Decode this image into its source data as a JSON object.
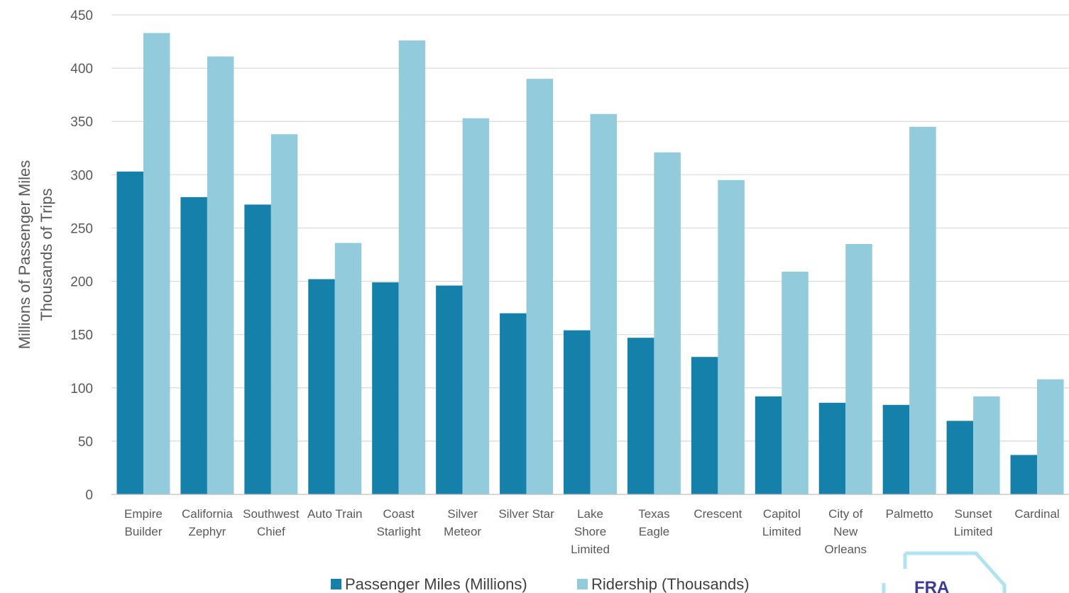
{
  "chart_data": {
    "type": "bar",
    "ylabel": [
      "Millions of Passenger Miles",
      "Thousands of Trips"
    ],
    "ylim": [
      0,
      450
    ],
    "yticks": [
      0,
      50,
      100,
      150,
      200,
      250,
      300,
      350,
      400,
      450
    ],
    "grid": true,
    "legend_position": "bottom",
    "categories": [
      [
        "Empire",
        "Builder"
      ],
      [
        "California",
        "Zephyr"
      ],
      [
        "Southwest",
        "Chief"
      ],
      [
        "Auto Train"
      ],
      [
        "Coast",
        "Starlight"
      ],
      [
        "Silver",
        "Meteor"
      ],
      [
        "Silver Star"
      ],
      [
        "Lake",
        "Shore",
        "Limited"
      ],
      [
        "Texas",
        "Eagle"
      ],
      [
        "Crescent"
      ],
      [
        "Capitol",
        "Limited"
      ],
      [
        "City of",
        "New",
        "Orleans"
      ],
      [
        "Palmetto"
      ],
      [
        "Sunset",
        "Limited"
      ],
      [
        "Cardinal"
      ]
    ],
    "series": [
      {
        "name": "Passenger Miles (Millions)",
        "color": "#1581aa",
        "values": [
          303,
          279,
          272,
          202,
          199,
          196,
          170,
          154,
          147,
          129,
          92,
          86,
          84,
          69,
          37
        ]
      },
      {
        "name": "Ridership (Thousands)",
        "color": "#92cbdc",
        "values": [
          433,
          411,
          338,
          236,
          426,
          353,
          390,
          357,
          321,
          295,
          209,
          235,
          345,
          92,
          108
        ]
      }
    ]
  },
  "logo": {
    "text": "FRA",
    "color": "#3a3a9a"
  }
}
